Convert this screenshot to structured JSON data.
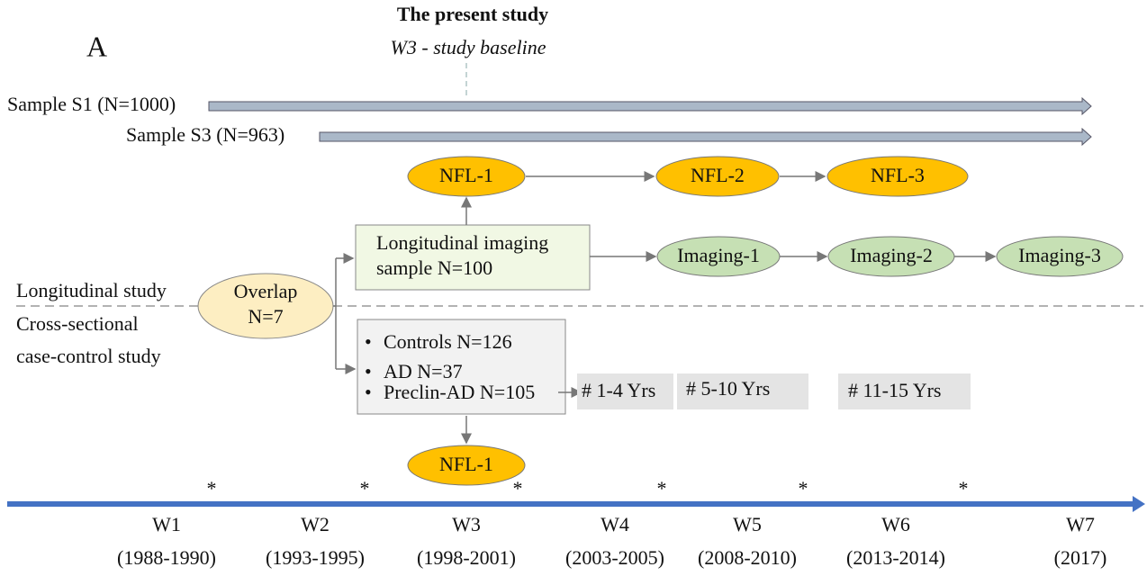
{
  "header": {
    "title": "The present study",
    "subtitle": "W3 - study baseline",
    "panel": "A"
  },
  "samples": [
    {
      "label": "Sample S1 (N=1000)"
    },
    {
      "label": "Sample S3 (N=963)"
    }
  ],
  "longitudinal": {
    "label": "Longitudinal study",
    "box": [
      "Longitudinal imaging",
      "sample N=100"
    ],
    "nfl": [
      "NFL-1",
      "NFL-2",
      "NFL-3"
    ],
    "imaging": [
      "Imaging-1",
      "Imaging-2",
      "Imaging-3"
    ]
  },
  "overlap": [
    "Overlap",
    "N=7"
  ],
  "cross_sectional": {
    "label": [
      "Cross-sectional",
      "case-control study"
    ],
    "groups": [
      "Controls N=126",
      "AD N=37",
      "Preclin-AD N=105"
    ],
    "followup": [
      "# 1-4 Yrs",
      "# 5-10 Yrs",
      "# 11-15 Yrs"
    ],
    "nfl": "NFL-1"
  },
  "timeline": {
    "stars": [
      "*",
      "*",
      "*",
      "*",
      "*",
      "*"
    ],
    "waves": [
      {
        "name": "W1",
        "years": "(1988-1990)"
      },
      {
        "name": "W2",
        "years": "(1993-1995)"
      },
      {
        "name": "W3",
        "years": "(1998-2001)"
      },
      {
        "name": "W4",
        "years": "(2003-2005)"
      },
      {
        "name": "W5",
        "years": "(2008-2010)"
      },
      {
        "name": "W6",
        "years": "(2013-2014)"
      },
      {
        "name": "W7",
        "years": "(2017)"
      }
    ]
  }
}
